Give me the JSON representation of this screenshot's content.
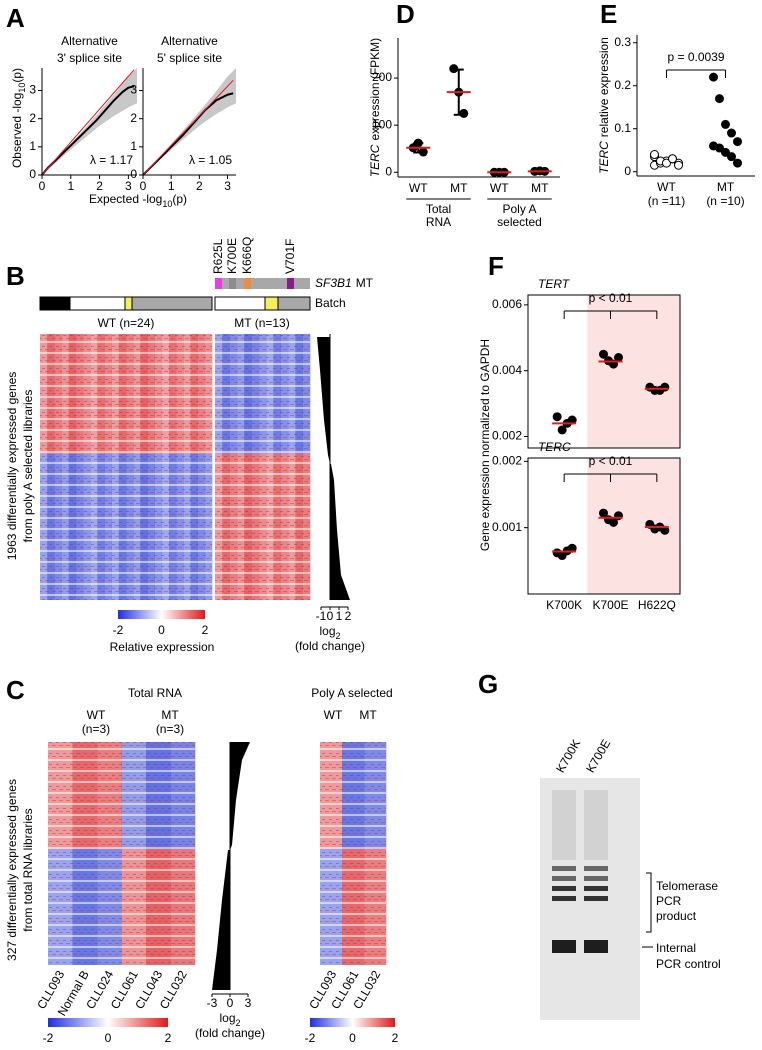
{
  "panel_labels": {
    "a": "A",
    "b": "B",
    "c": "C",
    "d": "D",
    "e": "E",
    "f": "F",
    "g": "G"
  },
  "panel_a": {
    "x_label": "Expected -log",
    "x_label_sub": "10",
    "x_label_end": "(p)",
    "y_label": "Observed -log",
    "y_label_sub": "10",
    "y_label_end": "(p)"
  },
  "panel_b": {
    "mutations": [
      {
        "label": "R625L",
        "color": "#e83ee8"
      },
      {
        "label": "K700E",
        "color": "#8c8c8c"
      },
      {
        "label": "K666Q",
        "color": "#f08a3c"
      },
      {
        "label": "V701F",
        "color": "#8b1a8b"
      }
    ],
    "mutation_gene": "SF3B1",
    "mutation_suffix": "MT",
    "batch_label": "Batch",
    "wt_label": "WT (n=24)",
    "mt_label": "MT (n=13)",
    "y_label": [
      "1963 differentially expressed genes",
      "from poly A selected libraries"
    ],
    "colorbar_ticks": [
      -2,
      0,
      2
    ],
    "colorbar_label": "Relative expression",
    "fold_ticks": [
      -1,
      0,
      1,
      2
    ],
    "fold_label": "log",
    "fold_label_sub": "2",
    "fold_label_end": "(fold change)"
  },
  "panel_c": {
    "total_title": "Total RNA",
    "wt_label": [
      "WT",
      "(n=3)"
    ],
    "mt_label": [
      "MT",
      "(n=3)"
    ],
    "total_samples": [
      "CLL093",
      "Normal B",
      "CLL024",
      "CLL061",
      "CLL043",
      "CLL032"
    ],
    "y_label": [
      "327 differentially expressed genes",
      "from total RNA libraries"
    ],
    "fold_ticks": [
      -3,
      0,
      3
    ],
    "fold_label": "log",
    "fold_label_sub": "2",
    "fold_label_end": "(fold change)",
    "polya_title": "Poly A selected",
    "polya_wt": "WT",
    "polya_mt": "MT",
    "polya_samples": [
      "CLL093",
      "CLL061",
      "CLL032"
    ],
    "colorbar_ticks": [
      -2,
      0,
      2
    ]
  },
  "panel_f": {
    "y_label": "Gene expression normalized to GAPDH"
  },
  "panel_g": {
    "lanes": [
      {
        "label": "K700K",
        "color": "#000000"
      },
      {
        "label": "K700E",
        "color": "#e31a1c"
      }
    ],
    "product_label": [
      "Telomerase",
      "PCR",
      "product"
    ],
    "control_label": [
      "Internal",
      "PCR control"
    ]
  },
  "chart_data": [
    {
      "type": "qq",
      "title": [
        "Alternative",
        "3' splice site"
      ],
      "annotation": "λ = 1.17",
      "annotation_color": "#e31a1c",
      "series": [
        {
          "color": "#000000",
          "x": [
            0,
            0.2,
            0.5,
            0.8,
            1.0,
            1.3,
            1.6,
            1.9,
            2.2,
            2.5,
            2.8,
            3.0,
            3.2
          ],
          "values": [
            0,
            0.25,
            0.55,
            0.85,
            1.05,
            1.35,
            1.65,
            1.95,
            2.3,
            2.65,
            2.95,
            3.1,
            3.15
          ]
        },
        {
          "color": "#e31a1c",
          "x": [
            0,
            3.2
          ],
          "values": [
            0,
            3.74
          ]
        }
      ],
      "band": {
        "x": [
          0,
          1,
          2,
          2.5,
          3,
          3.3
        ],
        "lower": [
          0,
          0.9,
          1.75,
          2.1,
          2.4,
          2.55
        ],
        "upper": [
          0,
          1.1,
          2.25,
          2.85,
          3.5,
          3.8
        ]
      },
      "xlim": [
        0,
        3.3
      ],
      "ylim": [
        0,
        3.8
      ],
      "xticks": [
        0,
        1,
        2,
        3
      ],
      "yticks": [
        0,
        1,
        2,
        3
      ]
    },
    {
      "type": "qq",
      "title": [
        "Alternative",
        "5' splice site"
      ],
      "annotation": "λ = 1.05",
      "annotation_color": "#e31a1c",
      "series": [
        {
          "color": "#000000",
          "x": [
            0,
            0.3,
            0.6,
            1,
            1.4,
            1.8,
            2.2,
            2.6,
            3.0,
            3.2
          ],
          "values": [
            0,
            0.3,
            0.6,
            1.0,
            1.4,
            1.85,
            2.3,
            2.65,
            2.85,
            2.9
          ]
        },
        {
          "color": "#e31a1c",
          "x": [
            0,
            3.2
          ],
          "values": [
            0,
            3.36
          ]
        }
      ],
      "band": {
        "x": [
          0,
          1,
          2,
          2.5,
          3,
          3.3
        ],
        "lower": [
          0,
          0.9,
          1.75,
          2.1,
          2.4,
          2.55
        ],
        "upper": [
          0,
          1.1,
          2.25,
          2.85,
          3.5,
          3.8
        ]
      },
      "xlim": [
        0,
        3.3
      ],
      "ylim": [
        0,
        3.8
      ],
      "xticks": [
        0,
        1,
        2,
        3
      ],
      "yticks": [
        0,
        1,
        2,
        3
      ]
    },
    {
      "type": "dot",
      "y_label": [
        "TERC",
        "expression (FPKM)"
      ],
      "categories": [
        "WT",
        "MT",
        "WT",
        "MT"
      ],
      "groups": [
        {
          "label": [
            "Total",
            "RNA"
          ]
        },
        {
          "label": [
            "Poly A",
            "selected"
          ]
        }
      ],
      "points": [
        [
          52,
          62,
          43
        ],
        [
          220,
          170,
          125
        ],
        [
          0,
          0,
          0
        ],
        [
          2,
          3,
          2
        ]
      ],
      "means": [
        52,
        170,
        0,
        2
      ],
      "errors": [
        10,
        48,
        null,
        null
      ],
      "point_color": "#000000",
      "mean_color": "#e31a1c",
      "ylim": [
        -10,
        285
      ],
      "yticks": [
        0,
        100,
        200
      ]
    },
    {
      "type": "dot",
      "y_label": [
        "TERC",
        "relative expression"
      ],
      "categories": [
        "WT",
        "MT"
      ],
      "n_labels": [
        "(n =11)",
        "(n =10)"
      ],
      "points": [
        [
          0.015,
          0.02,
          0.025,
          0.03,
          0.02,
          0.035,
          0.025,
          0.02,
          0.03,
          0.015,
          0.04
        ],
        [
          0.22,
          0.17,
          0.11,
          0.09,
          0.07,
          0.06,
          0.055,
          0.045,
          0.035,
          0.02
        ]
      ],
      "marker_fill": [
        "#ffffff",
        "#000000"
      ],
      "point_color": "#000000",
      "comparison": {
        "label": "p = 0.0039"
      },
      "ylim": [
        -0.01,
        0.318
      ],
      "yticks": [
        0,
        0.1,
        0.2,
        0.3
      ]
    },
    {
      "type": "dot",
      "title": "TERT",
      "points": [
        [
          0.0026,
          0.0022,
          0.0024,
          0.0025
        ],
        [
          0.0045,
          0.0043,
          0.0042,
          0.0044
        ],
        [
          0.0035,
          0.0034,
          0.0034,
          0.0035
        ]
      ],
      "means": [
        0.0024,
        0.00428,
        0.00345
      ],
      "highlight": [
        false,
        true,
        true
      ],
      "shade_color": "#fde2e2",
      "point_color": "#000000",
      "mean_color": "#e31a1c",
      "comparison": {
        "label": "p < 0.01"
      },
      "ylim": [
        0.00165,
        0.0063
      ],
      "yticks": [
        0.002,
        0.004,
        0.006
      ]
    },
    {
      "type": "dot",
      "title": "TERC",
      "categories": [
        "K700K",
        "K700E",
        "H622Q"
      ],
      "points": [
        [
          0.00062,
          0.00058,
          0.00065,
          0.00069
        ],
        [
          0.00122,
          0.00112,
          0.00108,
          0.00118
        ],
        [
          0.00105,
          0.00098,
          0.00101,
          0.00096
        ]
      ],
      "means": [
        0.00064,
        0.00115,
        0.00101
      ],
      "highlight": [
        false,
        true,
        true
      ],
      "shade_color": "#fde2e2",
      "label_highlight_color": "#e31a1c",
      "point_color": "#000000",
      "mean_color": "#e31a1c",
      "comparison": {
        "label": "p < 0.01"
      },
      "ylim": [
        0,
        0.00205
      ],
      "yticks": [
        0.001,
        0.002
      ]
    }
  ]
}
